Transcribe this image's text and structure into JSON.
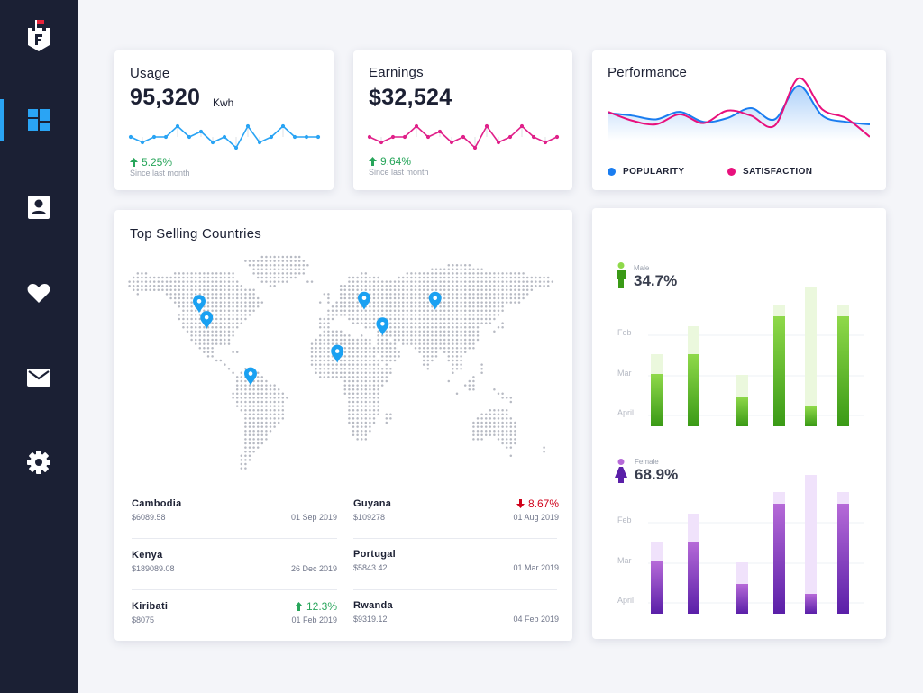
{
  "sidebar": {
    "logo": "castle-logo",
    "items": [
      {
        "name": "dashboard",
        "icon": "dashboard-icon",
        "active": true
      },
      {
        "name": "contacts",
        "icon": "contact-card-icon",
        "active": false
      },
      {
        "name": "favorites",
        "icon": "heart-icon",
        "active": false
      },
      {
        "name": "messages",
        "icon": "mail-icon",
        "active": false
      },
      {
        "name": "settings",
        "icon": "gear-icon",
        "active": false
      }
    ],
    "accent": "#2aa4f4"
  },
  "usage": {
    "title": "Usage",
    "value": "95,320",
    "unit": "Kwh",
    "change": "5.25%",
    "since": "Since last month",
    "color": "#2aa4f4",
    "chart_data": {
      "type": "line",
      "values": [
        3,
        2,
        3,
        3,
        5,
        3,
        4,
        2,
        3,
        1,
        5,
        2,
        3,
        5,
        3,
        3,
        3
      ]
    }
  },
  "earnings": {
    "title": "Earnings",
    "value": "$32,524",
    "change": "9.64%",
    "since": "Since last month",
    "color": "#e0218a",
    "chart_data": {
      "type": "line",
      "values": [
        3,
        2,
        3,
        3,
        5,
        3,
        4,
        2,
        3,
        1,
        5,
        2,
        3,
        5,
        3,
        2,
        3
      ]
    }
  },
  "performance": {
    "title": "Performance",
    "legend": [
      {
        "label": "POPULARITY",
        "color": "#1a7df0"
      },
      {
        "label": "SATISFACTION",
        "color": "#e8117d"
      }
    ],
    "chart_data": {
      "type": "line",
      "series": [
        {
          "name": "POPULARITY",
          "values": [
            2.2,
            2.0,
            1.7,
            2.3,
            1.5,
            1.8,
            2.6,
            1.7,
            4.4,
            2.0,
            1.5,
            1.3
          ]
        },
        {
          "name": "SATISFACTION",
          "values": [
            2.3,
            1.6,
            1.3,
            2.1,
            1.4,
            2.4,
            2.0,
            1.2,
            5.0,
            2.5,
            1.8,
            0.3
          ]
        }
      ]
    }
  },
  "countries": {
    "title": "Top Selling Countries",
    "pins": [
      {
        "lon": -108,
        "lat": 46
      },
      {
        "lon": -102,
        "lat": 36
      },
      {
        "lon": -66,
        "lat": 1
      },
      {
        "lon": 5,
        "lat": 15
      },
      {
        "lon": 27,
        "lat": 48
      },
      {
        "lon": 42,
        "lat": 32
      },
      {
        "lon": 85,
        "lat": 48
      }
    ],
    "list": [
      {
        "name": "Cambodia",
        "amount": "$6089.58",
        "date": "01 Sep 2019",
        "change": ""
      },
      {
        "name": "Guyana",
        "amount": "$109278",
        "date": "01 Aug 2019",
        "change": "8.67%",
        "direction": "down"
      },
      {
        "name": "Kenya",
        "amount": "$189089.08",
        "date": "26 Dec 2019",
        "change": ""
      },
      {
        "name": "Portugal",
        "amount": "$5843.42",
        "date": "01 Mar 2019",
        "change": ""
      },
      {
        "name": "Kiribati",
        "amount": "$8075",
        "date": "01 Feb 2019",
        "change": "12.3%",
        "direction": "up"
      },
      {
        "name": "Rwanda",
        "amount": "$9319.12",
        "date": "04 Feb 2019",
        "change": ""
      }
    ],
    "up_color": "#27a55a",
    "down_color": "#d0021b",
    "pin_color": "#1aa1f2"
  },
  "male": {
    "label": "Male",
    "value": "34.7%",
    "icon": "male-person-icon",
    "axis": [
      "Feb",
      "Mar",
      "April"
    ],
    "colors": {
      "dark": "#3a9a16",
      "light": "#8fd94a",
      "track": "#ebf8dd"
    },
    "chart_data": {
      "type": "bar",
      "track": [
        80,
        111,
        57,
        135,
        154,
        135
      ],
      "values": [
        58,
        80,
        33,
        122,
        22,
        122
      ]
    }
  },
  "female": {
    "label": "Female",
    "value": "68.9%",
    "icon": "female-person-icon",
    "axis": [
      "Feb",
      "Mar",
      "April"
    ],
    "colors": {
      "dark": "#5a1fa8",
      "light": "#b66ad8",
      "track": "#f0e2fb"
    },
    "chart_data": {
      "type": "bar",
      "track": [
        80,
        111,
        57,
        135,
        154,
        135
      ],
      "values": [
        58,
        80,
        33,
        122,
        22,
        122
      ]
    }
  }
}
